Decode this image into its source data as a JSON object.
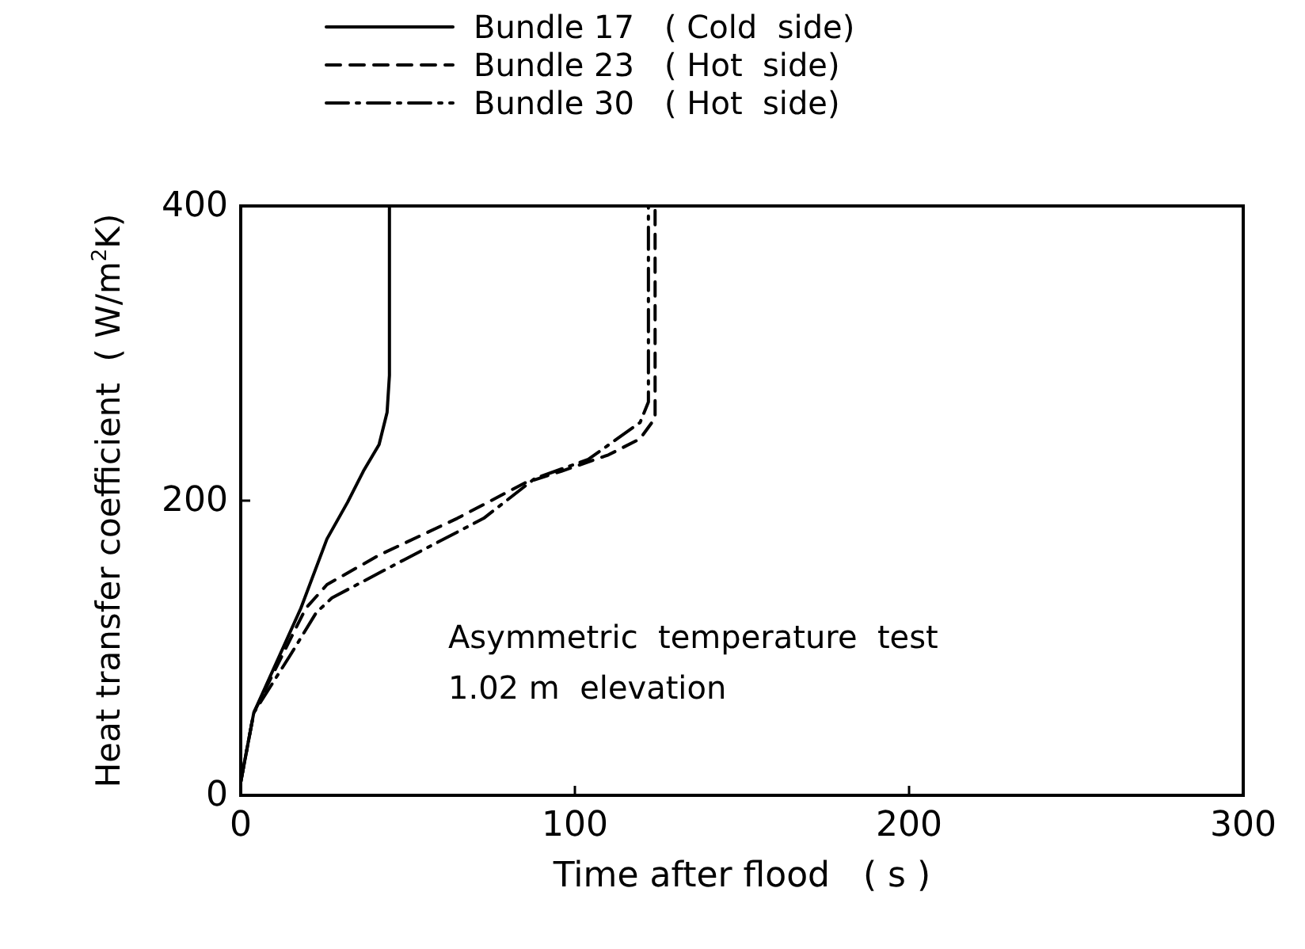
{
  "chart_data": {
    "type": "line",
    "xlabel": "Time after flood   ( s )",
    "ylabel": "Heat transfer coefficient  ( W/m$^{2}$K)",
    "xlim": [
      0,
      300
    ],
    "xticks": [
      0,
      100,
      200,
      300
    ],
    "ylim": [
      0,
      400
    ],
    "yticks": [
      0,
      200,
      400
    ],
    "grid": false,
    "legend": "top",
    "marker": "none",
    "annotations": [
      "Asymmetric  temperature  test",
      "1.02 m  elevation"
    ],
    "series": [
      {
        "name": "Bundle 17   ( Cold  side)",
        "color": "#000000",
        "line_style": "solid",
        "x": [
          0,
          3.9,
          18,
          25.8,
          32,
          36.7,
          41.4,
          43.8,
          44.5,
          44.5,
          44.5
        ],
        "values": [
          9,
          56,
          127,
          174,
          199,
          220,
          238,
          260,
          285,
          357,
          400
        ]
      },
      {
        "name": "Bundle 23   ( Hot  side)",
        "color": "#000000",
        "line_style": "dashed",
        "x": [
          0,
          3.9,
          13.3,
          19.5,
          25.8,
          41.4,
          64.8,
          85,
          96,
          110,
          119.5,
          124,
          124,
          124
        ],
        "values": [
          9,
          56,
          99,
          127,
          143,
          163,
          188,
          212,
          220,
          231,
          242,
          256,
          303,
          400
        ]
      },
      {
        "name": "Bundle 30   ( Hot  side)",
        "color": "#000000",
        "line_style": "dashdot",
        "x": [
          0,
          3.9,
          14.8,
          22.6,
          27.3,
          49,
          72.7,
          88,
          104,
          119.5,
          122,
          122
        ],
        "values": [
          9,
          56,
          95,
          124,
          134,
          160,
          188,
          215,
          228,
          253,
          267,
          400
        ]
      }
    ]
  }
}
